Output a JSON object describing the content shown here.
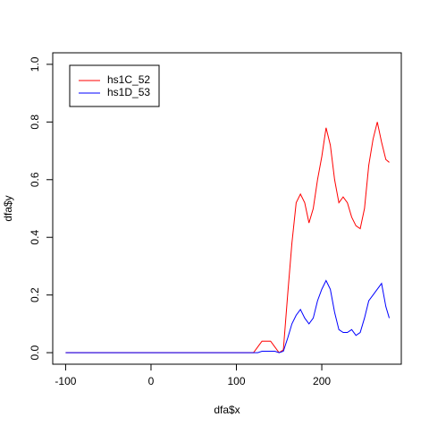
{
  "chart_data": {
    "type": "line",
    "xlabel": "dfa$x",
    "ylabel": "dfa$y",
    "x": [
      -100,
      120,
      125,
      130,
      135,
      140,
      145,
      150,
      155,
      160,
      165,
      170,
      175,
      180,
      185,
      190,
      195,
      200,
      205,
      210,
      215,
      220,
      225,
      230,
      235,
      240,
      245,
      250,
      255,
      260,
      265,
      270,
      275,
      279
    ],
    "series": [
      {
        "name": "hs1C_52",
        "color": "#ff0000",
        "values": [
          0,
          0,
          0.02,
          0.04,
          0.04,
          0.04,
          0.02,
          0,
          0.01,
          0.2,
          0.38,
          0.52,
          0.55,
          0.52,
          0.45,
          0.5,
          0.6,
          0.68,
          0.78,
          0.72,
          0.6,
          0.52,
          0.54,
          0.52,
          0.47,
          0.44,
          0.43,
          0.5,
          0.65,
          0.74,
          0.8,
          0.73,
          0.67,
          0.66
        ]
      },
      {
        "name": "hs1D_53",
        "color": "#0000ff",
        "values": [
          0,
          0,
          0,
          0.005,
          0.005,
          0.005,
          0.005,
          0,
          0.005,
          0.05,
          0.1,
          0.13,
          0.15,
          0.12,
          0.1,
          0.12,
          0.18,
          0.22,
          0.25,
          0.22,
          0.14,
          0.08,
          0.07,
          0.07,
          0.08,
          0.06,
          0.07,
          0.12,
          0.18,
          0.2,
          0.22,
          0.24,
          0.16,
          0.12
        ]
      }
    ],
    "xlim": [
      -115.1,
      293.1
    ],
    "xticks": [
      -100,
      0,
      100,
      200
    ],
    "ylim": [
      -0.04,
      1.04
    ],
    "yticks": [
      {
        "value": 0,
        "label": "0.0"
      },
      0.2,
      0.4,
      0.6,
      0.8,
      {
        "value": 1,
        "label": "1.0"
      }
    ],
    "legend": "top-left"
  }
}
